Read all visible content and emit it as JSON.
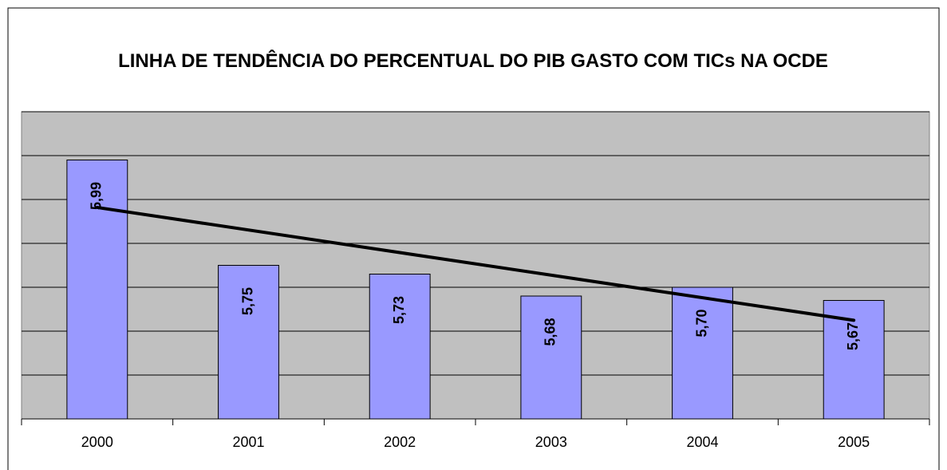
{
  "chart_data": {
    "type": "bar",
    "title": "LINHA DE TENDÊNCIA DO PERCENTUAL DO PIB GASTO COM TICs NA OCDE",
    "categories": [
      "2000",
      "2001",
      "2002",
      "2003",
      "2004",
      "2005"
    ],
    "values": [
      5.99,
      5.75,
      5.73,
      5.68,
      5.7,
      5.67
    ],
    "value_labels": [
      "5,99",
      "5,75",
      "5,73",
      "5,68",
      "5,70",
      "5,67"
    ],
    "color": "#9999ff",
    "ylim": [
      5.4,
      6.1
    ],
    "yticks": [
      5.4,
      5.5,
      5.6,
      5.7,
      5.8,
      5.9,
      6.0,
      6.1
    ],
    "grid": true,
    "trendline": "linear",
    "trendline_color": "#000000"
  }
}
